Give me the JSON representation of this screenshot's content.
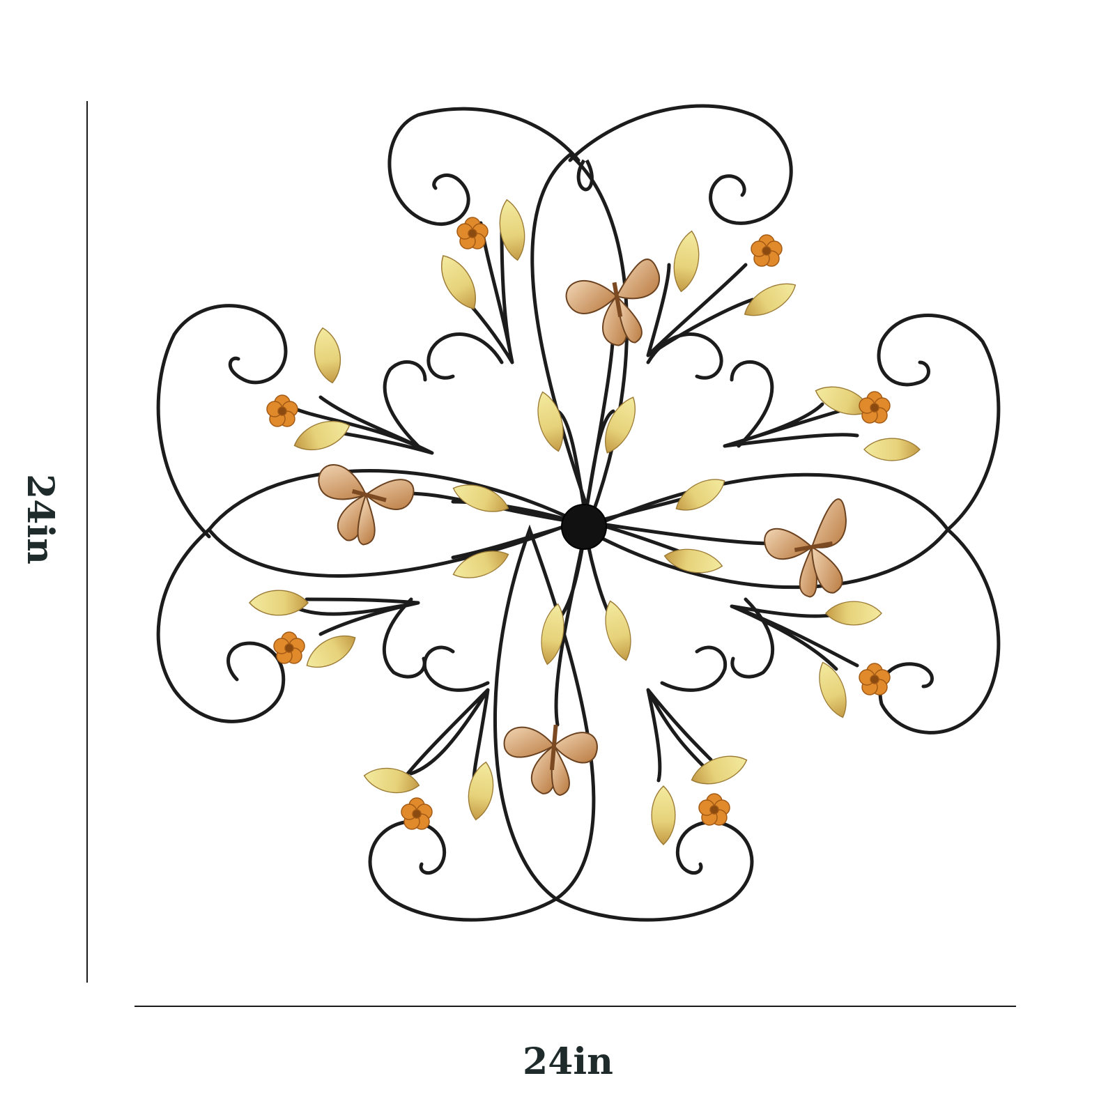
{
  "dimensions": {
    "height_label": "24in",
    "width_label": "24in"
  },
  "product": {
    "image_icon": "metal-flower-wall-art-icon",
    "colors": {
      "wire": "#1c1c1c",
      "leaf_light": "#f1e79a",
      "leaf_dark": "#c9a24a",
      "flower": "#e08a2c",
      "butterfly": "#d9a271",
      "center": "#111111"
    }
  }
}
